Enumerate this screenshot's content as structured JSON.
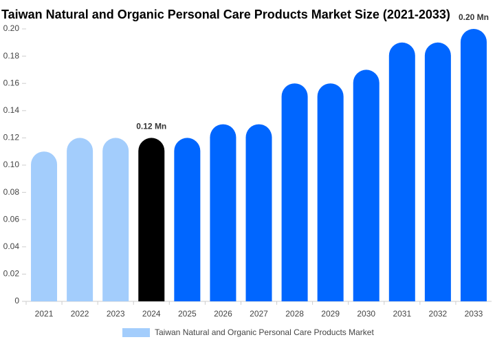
{
  "chart_data": {
    "type": "bar",
    "title": "Taiwan Natural and Organic Personal Care Products Market Size (2021-2033)",
    "categories": [
      "2021",
      "2022",
      "2023",
      "2024",
      "2025",
      "2026",
      "2027",
      "2028",
      "2029",
      "2030",
      "2031",
      "2032",
      "2033"
    ],
    "series": [
      {
        "name": "Taiwan Natural and Organic Personal Care Products Market",
        "color": "#a3cdfc",
        "values": [
          0.11,
          0.12,
          0.12,
          0.12,
          0.12,
          0.13,
          0.13,
          0.16,
          0.16,
          0.17,
          0.19,
          0.19,
          0.2
        ],
        "colors": [
          "#a3cdfc",
          "#a3cdfc",
          "#a3cdfc",
          "#000000",
          "#0066ff",
          "#0066ff",
          "#0066ff",
          "#0066ff",
          "#0066ff",
          "#0066ff",
          "#0066ff",
          "#0066ff",
          "#0066ff"
        ],
        "value_labels": [
          null,
          null,
          null,
          "0.12 Mn",
          null,
          null,
          null,
          null,
          null,
          null,
          null,
          null,
          "0.20 Mn"
        ]
      }
    ],
    "ylim": [
      0,
      0.2
    ],
    "yticks": [
      0,
      0.02,
      0.04,
      0.06,
      0.08,
      {
        "value": 0.1,
        "label": "0.10"
      },
      0.12,
      0.14,
      0.16,
      0.18,
      {
        "value": 0.2,
        "label": "0.20"
      }
    ],
    "grid": false,
    "legend": "bottom"
  }
}
